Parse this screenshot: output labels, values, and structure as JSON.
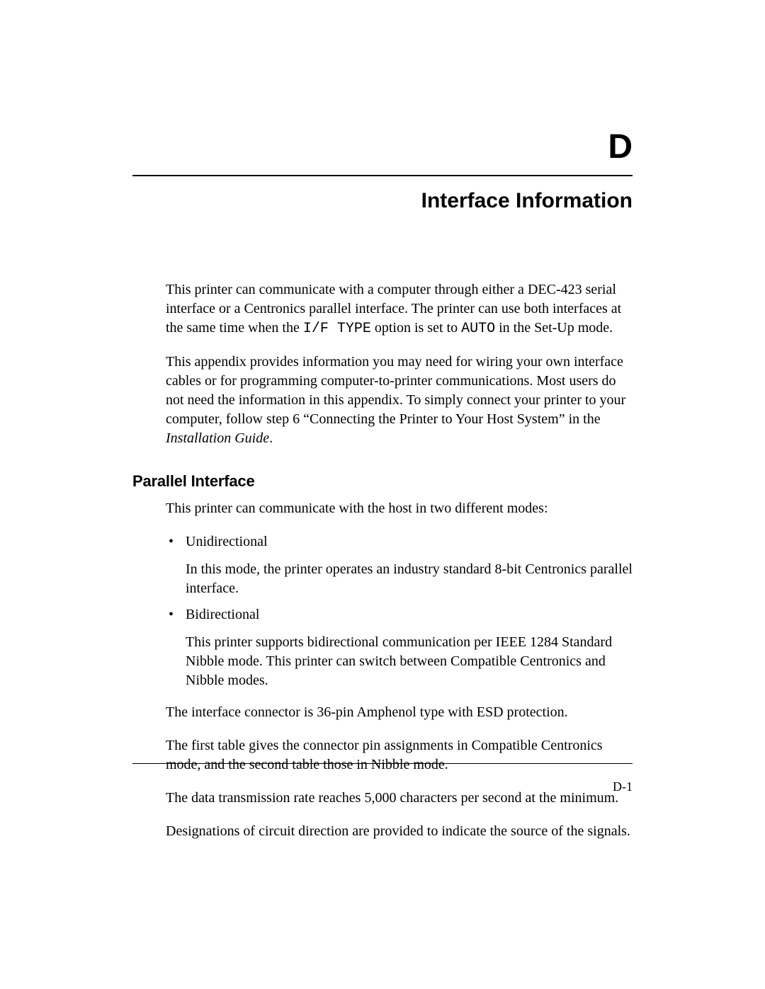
{
  "appendix": {
    "letter": "D",
    "title": "Interface Information"
  },
  "intro": {
    "p1_a": "This printer can communicate with a computer through either a DEC-423 serial interface or a Centronics parallel interface.  The printer can use both interfaces at the same time when the ",
    "code1": "I/F TYPE",
    "p1_b": " option is set to ",
    "code2": "AUTO",
    "p1_c": " in the Set-Up mode.",
    "p2_a": "This appendix provides information you may need for wiring your own interface cables or for programming computer-to-printer communications.  Most users do not need the information in this appendix. To simply connect your printer to your computer, follow step 6 “Connecting the Printer to Your Host System” in the ",
    "p2_italic": "Installation Guide",
    "p2_b": "."
  },
  "section": {
    "heading": "Parallel Interface",
    "lead": "This printer can communicate with the host in two different modes:",
    "items": [
      {
        "name": "Unidirectional",
        "desc": "In this mode, the printer operates an industry standard 8-bit Centronics parallel interface."
      },
      {
        "name": "Bidirectional",
        "desc": "This printer supports bidirectional communication per IEEE 1284 Standard Nibble mode.  This printer can switch between Compatible Centronics and Nibble modes."
      }
    ],
    "p3": "The interface connector is 36-pin Amphenol type with ESD protection.",
    "p4": "The first table gives the connector pin assignments in Compatible Centronics mode, and the second table those in Nibble mode.",
    "p5": "The data transmission rate reaches 5,000 characters per second at the minimum.",
    "p6": "Designations of circuit direction are provided to indicate the source of the signals."
  },
  "footer": {
    "page_number": "D-1"
  }
}
